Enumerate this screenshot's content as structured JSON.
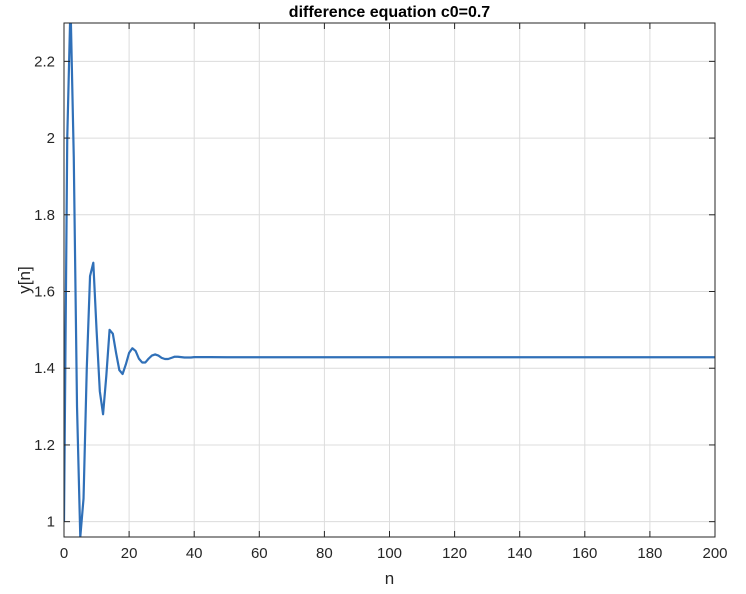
{
  "chart_data": {
    "type": "line",
    "title": "difference equation c0=0.7",
    "xlabel": "n",
    "ylabel": "y[n]",
    "xlim": [
      0,
      200
    ],
    "ylim": [
      0.96,
      2.3
    ],
    "xticks": [
      0,
      20,
      40,
      60,
      80,
      100,
      120,
      140,
      160,
      180,
      200
    ],
    "yticks": [
      1,
      1.2,
      1.4,
      1.6,
      1.8,
      2,
      2.2
    ],
    "xtick_labels": [
      "0",
      "20",
      "40",
      "60",
      "80",
      "100",
      "120",
      "140",
      "160",
      "180",
      "200"
    ],
    "ytick_labels": [
      "1",
      "1.2",
      "1.4",
      "1.6",
      "1.8",
      "2",
      "2.2"
    ],
    "grid": true,
    "series": [
      {
        "color": "#3070b8",
        "x": [
          0,
          1,
          2,
          3,
          4,
          5,
          6,
          7,
          8,
          9,
          10,
          11,
          12,
          13,
          14,
          15,
          16,
          17,
          18,
          19,
          20,
          21,
          22,
          23,
          24,
          25,
          26,
          27,
          28,
          29,
          30,
          31,
          32,
          33,
          34,
          35,
          36,
          37,
          38,
          39,
          40,
          41,
          42,
          43,
          44,
          45,
          50,
          60,
          80,
          100,
          120,
          140,
          160,
          180,
          200
        ],
        "y": [
          1.0,
          2.0,
          2.35,
          1.95,
          1.3,
          0.96,
          1.06,
          1.4,
          1.64,
          1.675,
          1.5,
          1.34,
          1.28,
          1.38,
          1.5,
          1.49,
          1.44,
          1.395,
          1.385,
          1.41,
          1.44,
          1.452,
          1.445,
          1.425,
          1.415,
          1.415,
          1.425,
          1.433,
          1.436,
          1.433,
          1.427,
          1.424,
          1.424,
          1.427,
          1.43,
          1.43,
          1.429,
          1.428,
          1.428,
          1.428,
          1.429,
          1.429,
          1.429,
          1.429,
          1.429,
          1.429,
          1.4286,
          1.4286,
          1.4286,
          1.4286,
          1.4286,
          1.4286,
          1.4286,
          1.4286,
          1.4286
        ]
      }
    ]
  }
}
